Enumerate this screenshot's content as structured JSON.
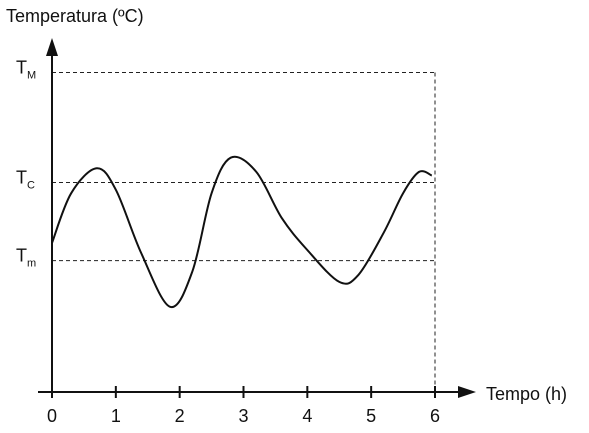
{
  "chart_data": {
    "type": "line",
    "ylabel": "Temperatura (ºC)",
    "xlabel": "Tempo (h)",
    "xlim": [
      0,
      6
    ],
    "ylim": [
      0,
      1
    ],
    "xticks": [
      "0",
      "1",
      "2",
      "3",
      "4",
      "5",
      "6"
    ],
    "reference_lines": [
      {
        "id": "TM",
        "main": "T",
        "sub": "M",
        "y": 0.9
      },
      {
        "id": "TC",
        "main": "T",
        "sub": "C",
        "y": 0.59
      },
      {
        "id": "Tm",
        "main": "T",
        "sub": "m",
        "y": 0.37
      }
    ],
    "series": [
      {
        "x": [
          0,
          0.3,
          0.7,
          1.0,
          1.4,
          1.85,
          2.2,
          2.5,
          2.8,
          3.2,
          3.6,
          4.0,
          4.5,
          4.8,
          5.2,
          5.5,
          5.75,
          5.95
        ],
        "y": [
          0.42,
          0.56,
          0.63,
          0.57,
          0.39,
          0.24,
          0.34,
          0.56,
          0.66,
          0.62,
          0.49,
          0.4,
          0.31,
          0.33,
          0.45,
          0.56,
          0.62,
          0.61
        ]
      }
    ],
    "grid": false,
    "legend": "none",
    "colors": {
      "line": "#111111",
      "axis": "#111111",
      "reference": "#222222"
    }
  }
}
